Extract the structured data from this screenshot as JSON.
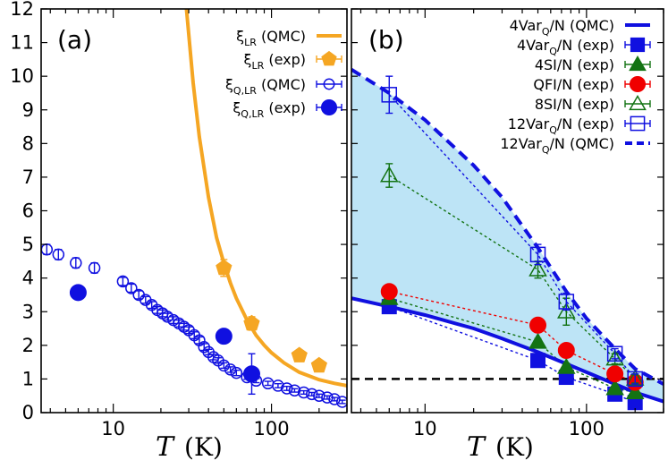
{
  "colors": {
    "orange": "#F5A623",
    "blue": "#1010E0",
    "green": "#137313",
    "red": "#F00000",
    "fill": "#BDE4F6",
    "black": "#000000"
  },
  "chart_data": [
    {
      "type": "scatter",
      "panel_label": "(a)",
      "xlabel_symbol": "T",
      "xlabel_unit": "(K)",
      "xscale": "log",
      "xlim": [
        3.5,
        300
      ],
      "ylim": [
        0,
        12
      ],
      "xticks_major": [
        10,
        100
      ],
      "xtick_labels": [
        "10",
        "100"
      ],
      "yticks": [
        0,
        1,
        2,
        3,
        4,
        5,
        6,
        7,
        8,
        9,
        10,
        11,
        12
      ],
      "ytick_labels": [
        "0",
        "1",
        "2",
        "3",
        "4",
        "5",
        "6",
        "7",
        "8",
        "9",
        "10",
        "11",
        "12"
      ],
      "legend_position": "top-right",
      "series": [
        {
          "name": "ξLR (QMC)",
          "label_main": "ξ",
          "label_sub": "LR",
          "label_rest": " (QMC)",
          "style": "line",
          "color": "#F5A623",
          "x": [
            29,
            32,
            35,
            40,
            45,
            50,
            55,
            60,
            70,
            80,
            90,
            100,
            120,
            150,
            200,
            250,
            300
          ],
          "y": [
            12.0,
            9.8,
            8.2,
            6.4,
            5.2,
            4.45,
            3.85,
            3.4,
            2.75,
            2.3,
            2.0,
            1.78,
            1.48,
            1.2,
            0.98,
            0.87,
            0.8
          ]
        },
        {
          "name": "ξLR (exp)",
          "label_main": "ξ",
          "label_sub": "LR",
          "label_rest": " (exp)",
          "style": "pentagon",
          "color": "#F5A623",
          "x": [
            50,
            75,
            150,
            200
          ],
          "y": [
            4.3,
            2.65,
            1.7,
            1.4
          ],
          "yerr": [
            0.25,
            0.2,
            0.15,
            0.12
          ]
        },
        {
          "name": "ξQ,LR (QMC)",
          "label_main": "ξ",
          "label_sub": "Q,LR",
          "label_rest": " (QMC)",
          "style": "open-circle",
          "color": "#1010E0",
          "x": [
            3.8,
            4.5,
            5.8,
            7.6,
            11.5,
            13,
            14.5,
            16,
            17.5,
            19,
            20.5,
            22,
            24,
            26,
            28,
            30,
            32.5,
            35,
            37.5,
            40,
            43,
            46,
            50,
            55,
            60,
            70,
            80,
            95,
            110,
            125,
            140,
            160,
            180,
            200,
            225,
            250,
            280
          ],
          "y": [
            4.85,
            4.7,
            4.45,
            4.3,
            3.9,
            3.7,
            3.5,
            3.35,
            3.2,
            3.05,
            2.95,
            2.85,
            2.75,
            2.65,
            2.55,
            2.45,
            2.3,
            2.15,
            1.95,
            1.8,
            1.65,
            1.55,
            1.4,
            1.28,
            1.18,
            1.05,
            0.95,
            0.87,
            0.8,
            0.72,
            0.66,
            0.6,
            0.55,
            0.5,
            0.45,
            0.4,
            0.32
          ],
          "yerr": [
            0.15,
            0.15,
            0.15,
            0.15,
            0.12,
            0.12,
            0.12,
            0.1,
            0.1,
            0.1,
            0.1,
            0.1,
            0.1,
            0.1,
            0.1,
            0.1,
            0.1,
            0.1,
            0.1,
            0.08,
            0.08,
            0.08,
            0.08,
            0.08,
            0.08,
            0.06,
            0.06,
            0.06,
            0.06,
            0.06,
            0.05,
            0.05,
            0.05,
            0.05,
            0.05,
            0.05,
            0.05
          ]
        },
        {
          "name": "ξQ,LR (exp)",
          "label_main": "ξ",
          "label_sub": "Q,LR",
          "label_rest": " (exp)",
          "style": "filled-circle",
          "color": "#1010E0",
          "x": [
            6,
            50,
            75
          ],
          "y": [
            3.57,
            2.27,
            1.15
          ],
          "yerr": [
            0,
            0,
            0.6
          ]
        }
      ]
    },
    {
      "type": "line",
      "panel_label": "(b)",
      "xlabel_symbol": "T",
      "xlabel_unit": "(K)",
      "xscale": "log",
      "xlim": [
        3.5,
        300
      ],
      "ylim": [
        0,
        12
      ],
      "xticks_major": [
        10,
        100
      ],
      "xtick_labels": [
        "10",
        "100"
      ],
      "reference_line_y": 1,
      "legend_position": "top-right",
      "shaded_band": "region between 4VarQ/N (QMC) and 12VarQ/N (QMC)",
      "series": [
        {
          "name": "4VarQ/N (QMC)",
          "label_main": "4Var",
          "label_sub": "Q",
          "label_rest": "/N (QMC)",
          "style": "solid-line",
          "color": "#1010E0",
          "x": [
            3.5,
            6,
            10,
            20,
            30,
            50,
            75,
            100,
            150,
            200,
            300
          ],
          "y": [
            3.4,
            3.15,
            2.9,
            2.5,
            2.2,
            1.8,
            1.45,
            1.2,
            0.85,
            0.6,
            0.33
          ]
        },
        {
          "name": "4VarQ/N (exp)",
          "label_main": "4Var",
          "label_sub": "Q",
          "label_rest": "/N (exp)",
          "style": "filled-square",
          "color": "#1010E0",
          "x": [
            6,
            50,
            75,
            150,
            200
          ],
          "y": [
            3.15,
            1.55,
            1.05,
            0.55,
            0.3
          ],
          "yerr": [
            0.1,
            0.1,
            0.1,
            0.08,
            0.08
          ]
        },
        {
          "name": "4SI/N (exp)",
          "label_main": "4SI/N (exp)",
          "label_sub": "",
          "label_rest": "",
          "style": "filled-triangle",
          "color": "#137313",
          "x": [
            6,
            50,
            75,
            150,
            200
          ],
          "y": [
            3.4,
            2.1,
            1.35,
            0.72,
            0.6
          ],
          "yerr": [
            0.12,
            0.1,
            0.12,
            0.08,
            0.08
          ]
        },
        {
          "name": "QFI/N (exp)",
          "label_main": "QFI/N (exp)",
          "label_sub": "",
          "label_rest": "",
          "style": "filled-circle",
          "color": "#F00000",
          "x": [
            6,
            50,
            75,
            150,
            200
          ],
          "y": [
            3.6,
            2.6,
            1.85,
            1.15,
            0.9
          ],
          "yerr": [
            0.1,
            0.1,
            0.2,
            0.1,
            0.1
          ]
        },
        {
          "name": "8SI/N (exp)",
          "label_main": "8SI/N (exp)",
          "label_sub": "",
          "label_rest": "",
          "style": "open-triangle",
          "color": "#137313",
          "x": [
            6,
            50,
            75,
            150,
            200
          ],
          "y": [
            7.05,
            4.25,
            3.0,
            1.6,
            1.0
          ],
          "yerr": [
            0.35,
            0.25,
            0.4,
            0.15,
            0.12
          ]
        },
        {
          "name": "12VarQ/N (exp)",
          "label_main": "12Var",
          "label_sub": "Q",
          "label_rest": "/N (exp)",
          "style": "open-square",
          "color": "#1010E0",
          "x": [
            6,
            50,
            75,
            150,
            200
          ],
          "y": [
            9.45,
            4.7,
            3.3,
            1.75,
            1.0
          ],
          "yerr": [
            0.55,
            0.3,
            0.25,
            0.15,
            0.15
          ]
        },
        {
          "name": "12VarQ/N (QMC)",
          "label_main": "12Var",
          "label_sub": "Q",
          "label_rest": "/N (QMC)",
          "style": "dashed-line",
          "color": "#1010E0",
          "x": [
            3.5,
            6,
            10,
            20,
            30,
            50,
            75,
            100,
            150,
            200,
            300
          ],
          "y": [
            10.2,
            9.5,
            8.7,
            7.35,
            6.4,
            4.9,
            3.6,
            2.8,
            1.9,
            1.3,
            0.85
          ]
        }
      ]
    }
  ]
}
